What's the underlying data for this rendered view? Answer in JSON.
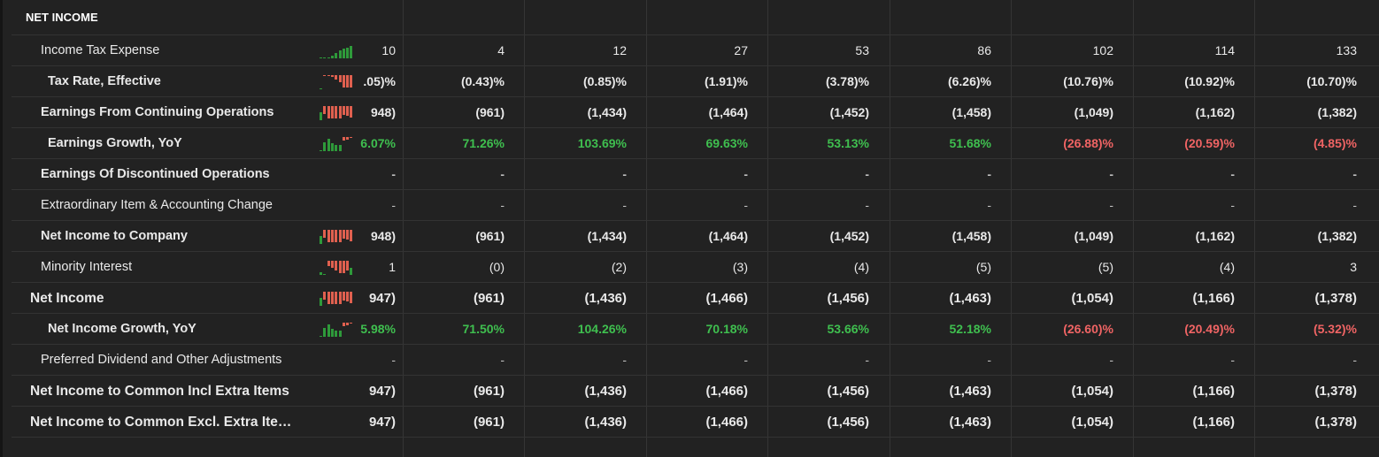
{
  "header": {
    "title": "NET INCOME"
  },
  "table": {
    "rows": [
      {
        "label": "Income Tax Expense",
        "level": 1,
        "bold": false,
        "spark": true,
        "colored": false,
        "cells": [
          "10",
          "4",
          "12",
          "27",
          "53",
          "86",
          "102",
          "114",
          "133"
        ]
      },
      {
        "label": "Tax Rate, Effective",
        "level": 2,
        "bold": true,
        "spark": true,
        "colored": false,
        "cells": [
          ".05)%",
          "(0.43)%",
          "(0.85)%",
          "(1.91)%",
          "(3.78)%",
          "(6.26)%",
          "(10.76)%",
          "(10.92)%",
          "(10.70)%"
        ]
      },
      {
        "label": "Earnings From Continuing Operations",
        "level": 1,
        "bold": true,
        "spark": true,
        "colored": false,
        "cells": [
          "948)",
          "(961)",
          "(1,434)",
          "(1,464)",
          "(1,452)",
          "(1,458)",
          "(1,049)",
          "(1,162)",
          "(1,382)"
        ]
      },
      {
        "label": "Earnings Growth, YoY",
        "level": 2,
        "bold": true,
        "spark": true,
        "colored": true,
        "cells": [
          "6.07%",
          "71.26%",
          "103.69%",
          "69.63%",
          "53.13%",
          "51.68%",
          "(26.88)%",
          "(20.59)%",
          "(4.85)%"
        ]
      },
      {
        "label": "Earnings Of Discontinued Operations",
        "level": 1,
        "bold": true,
        "spark": false,
        "colored": false,
        "cells": [
          "-",
          "-",
          "-",
          "-",
          "-",
          "-",
          "-",
          "-",
          "-"
        ]
      },
      {
        "label": "Extraordinary Item & Accounting Change",
        "level": 1,
        "bold": false,
        "spark": false,
        "colored": false,
        "cells": [
          "-",
          "-",
          "-",
          "-",
          "-",
          "-",
          "-",
          "-",
          "-"
        ]
      },
      {
        "label": "Net Income to Company",
        "level": 1,
        "bold": true,
        "spark": true,
        "colored": false,
        "cells": [
          "948)",
          "(961)",
          "(1,434)",
          "(1,464)",
          "(1,452)",
          "(1,458)",
          "(1,049)",
          "(1,162)",
          "(1,382)"
        ]
      },
      {
        "label": "Minority Interest",
        "level": 1,
        "bold": false,
        "spark": true,
        "colored": false,
        "cells": [
          "1",
          "(0)",
          "(2)",
          "(3)",
          "(4)",
          "(5)",
          "(5)",
          "(4)",
          "3"
        ]
      },
      {
        "label": "Net Income",
        "level": 0,
        "bold": true,
        "spark": true,
        "colored": false,
        "cells": [
          "947)",
          "(961)",
          "(1,436)",
          "(1,466)",
          "(1,456)",
          "(1,463)",
          "(1,054)",
          "(1,166)",
          "(1,378)"
        ]
      },
      {
        "label": "Net Income Growth, YoY",
        "level": 2,
        "bold": true,
        "spark": true,
        "colored": true,
        "cells": [
          "5.98%",
          "71.50%",
          "104.26%",
          "70.18%",
          "53.66%",
          "52.18%",
          "(26.60)%",
          "(20.49)%",
          "(5.32)%"
        ]
      },
      {
        "label": "Preferred Dividend and Other Adjustments",
        "level": 1,
        "bold": false,
        "spark": false,
        "colored": false,
        "cells": [
          "-",
          "-",
          "-",
          "-",
          "-",
          "-",
          "-",
          "-",
          "-"
        ]
      },
      {
        "label": "Net Income to Common Incl Extra Items",
        "level": 0,
        "bold": true,
        "spark": false,
        "colored": false,
        "cells": [
          "947)",
          "(961)",
          "(1,436)",
          "(1,466)",
          "(1,456)",
          "(1,463)",
          "(1,054)",
          "(1,166)",
          "(1,378)"
        ]
      },
      {
        "label": "Net Income to Common Excl. Extra Ite…",
        "level": 0,
        "bold": true,
        "spark": false,
        "colored": false,
        "cells": [
          "947)",
          "(961)",
          "(1,436)",
          "(1,466)",
          "(1,456)",
          "(1,463)",
          "(1,054)",
          "(1,166)",
          "(1,378)"
        ]
      }
    ]
  }
}
